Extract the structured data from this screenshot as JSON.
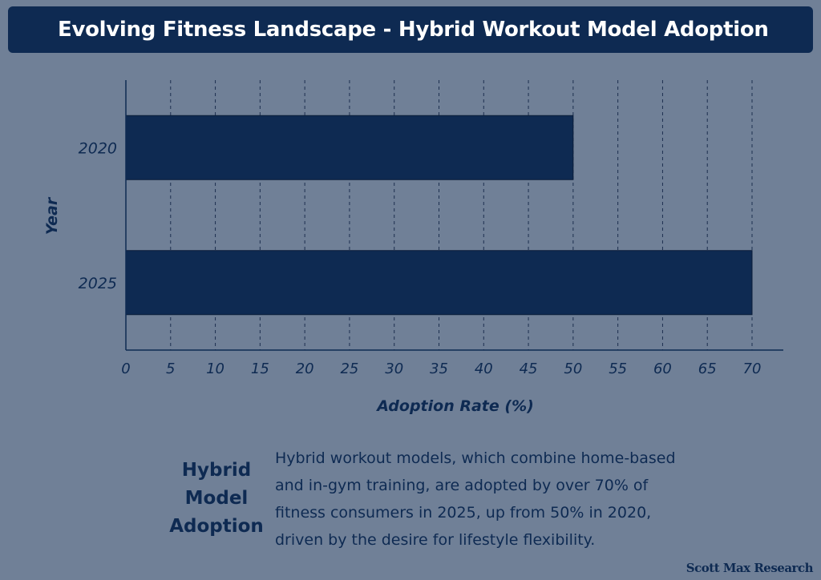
{
  "header": {
    "title": "Evolving Fitness Landscape - Hybrid Workout Model Adoption"
  },
  "chart_data": {
    "type": "bar",
    "orientation": "horizontal",
    "categories": [
      "2020",
      "2025"
    ],
    "values": [
      50,
      70
    ],
    "xlabel": "Adoption Rate (%)",
    "ylabel": "Year",
    "xlim": [
      0,
      73
    ],
    "xticks": [
      0,
      5,
      10,
      15,
      20,
      25,
      30,
      35,
      40,
      45,
      50,
      55,
      60,
      65,
      70
    ],
    "grid": "vertical dashed",
    "bar_color": "#0e2a52"
  },
  "footer": {
    "heading": "Hybrid Model Adoption",
    "text": "Hybrid workout models, which combine home-based and in-gym training, are adopted by over 70% of fitness consumers in 2025, up from 50% in 2020, driven by the desire for lifestyle flexibility.",
    "brand": "Scott Max Research"
  }
}
